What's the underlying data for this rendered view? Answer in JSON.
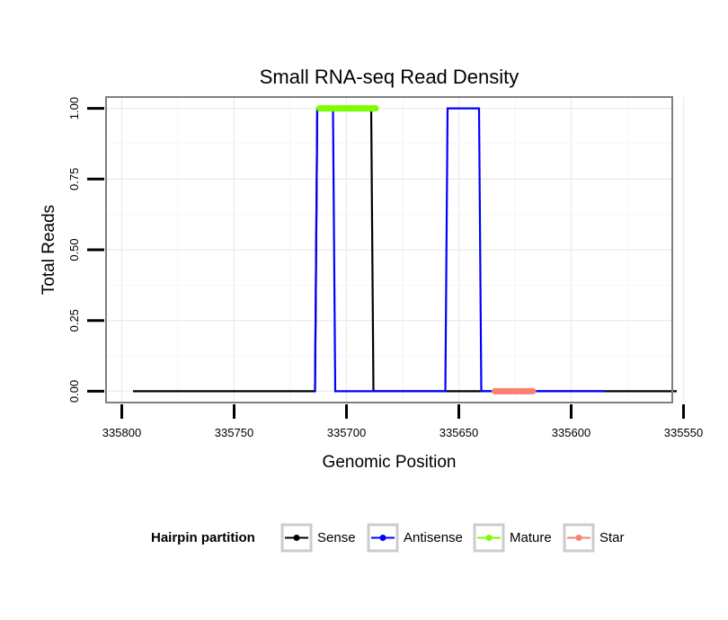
{
  "chart_data": {
    "type": "line",
    "title": "Small RNA-seq Read Density",
    "xlabel": "Genomic Position",
    "ylabel": "Total Reads",
    "x_reversed": true,
    "xlim": [
      335555,
      335807
    ],
    "ylim": [
      -0.04,
      1.04
    ],
    "x_ticks": [
      335800,
      335750,
      335700,
      335650,
      335600,
      335550
    ],
    "x_tick_labels": [
      "335800",
      "335750",
      "335700",
      "335650",
      "335600",
      "335550"
    ],
    "y_ticks": [
      0,
      0.25,
      0.5,
      0.75,
      1.0
    ],
    "y_tick_labels": [
      "0.00",
      "0.25",
      "0.50",
      "0.75",
      "1.00"
    ],
    "grid": true,
    "legend_position": "bottom",
    "legend_title": "Hairpin partition",
    "series": [
      {
        "name": "Sense",
        "color": "#000000",
        "x": [
          335795,
          335714,
          335713,
          335689,
          335688,
          335553
        ],
        "y": [
          0,
          0,
          1,
          1,
          0,
          0
        ]
      },
      {
        "name": "Antisense",
        "color": "#0000ff",
        "x": [
          335714,
          335713,
          335706,
          335705,
          335685,
          335684,
          335656,
          335655,
          335641,
          335640,
          335585
        ],
        "y": [
          0,
          1,
          1,
          0,
          0,
          0,
          0,
          1,
          1,
          0,
          0
        ]
      },
      {
        "name": "Mature",
        "color": "#7cfc00",
        "x": [
          335712,
          335687
        ],
        "y": [
          1,
          1
        ]
      },
      {
        "name": "Star",
        "color": "#fa8072",
        "x": [
          335634,
          335617
        ],
        "y": [
          0,
          0
        ]
      }
    ]
  }
}
